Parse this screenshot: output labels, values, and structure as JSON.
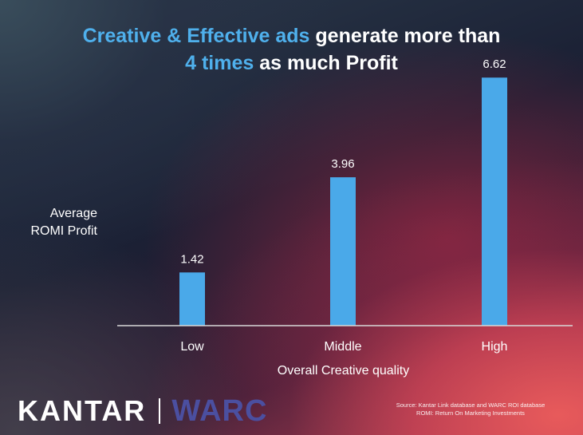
{
  "title": {
    "line1_highlight": "Creative & Effective ads",
    "line1_rest": " generate more than",
    "line2_highlight": "4 times",
    "line2_rest": " as much Profit"
  },
  "chart_data": {
    "type": "bar",
    "categories": [
      "Low",
      "Middle",
      "High"
    ],
    "values": [
      1.42,
      3.96,
      6.62
    ],
    "value_labels": [
      "1.42",
      "3.96",
      "6.62"
    ],
    "ylabel_line1": "Average",
    "ylabel_line2": "ROMI Profit",
    "xlabel": "Overall Creative quality",
    "ylim": [
      0,
      7.2
    ],
    "grid": false,
    "bar_color": "#4aa9e9",
    "label_color": "#ffffff"
  },
  "branding": {
    "logo_left": "KANTAR",
    "logo_right": "WARC"
  },
  "source": {
    "line1": "Source: Kantar Link database and WARC ROI database",
    "line2": "ROMI: Return On Marketing Investments"
  },
  "colors": {
    "title_highlight": "#4fb0ec",
    "warc_purple": "#4b4fa0"
  }
}
